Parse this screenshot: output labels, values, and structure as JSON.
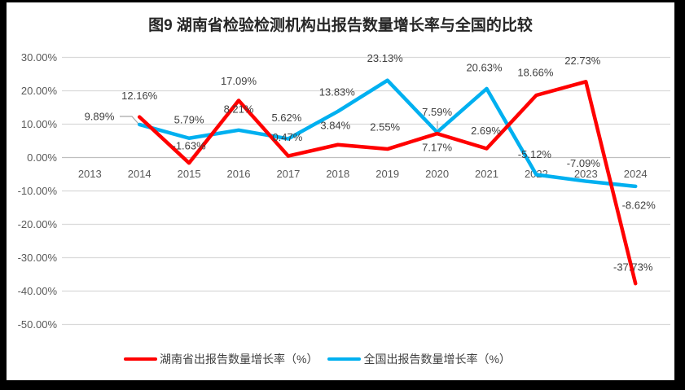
{
  "title": "图9 湖南省检验检测机构出报告数量增长率与全国的比较",
  "chart_data": {
    "type": "line",
    "categories": [
      "2013",
      "2014",
      "2015",
      "2016",
      "2017",
      "2018",
      "2019",
      "2020",
      "2021",
      "2022",
      "2023",
      "2024"
    ],
    "series": [
      {
        "name": "湖南省出报告数量增长率（%）",
        "color": "#FF0000",
        "values": [
          null,
          12.16,
          -1.63,
          17.09,
          0.47,
          3.84,
          2.55,
          7.17,
          2.69,
          18.66,
          22.73,
          -37.73
        ]
      },
      {
        "name": "全国出报告数量增长率（%）",
        "color": "#00B0F0",
        "values": [
          null,
          9.89,
          5.79,
          8.21,
          5.62,
          13.83,
          23.13,
          7.59,
          20.63,
          -5.12,
          -7.09,
          -8.62
        ]
      }
    ],
    "y_ticks": [
      "30.00%",
      "20.00%",
      "10.00%",
      "0.00%",
      "-10.00%",
      "-20.00%",
      "-30.00%",
      "-40.00%",
      "-50.00%"
    ],
    "ylim": [
      -50,
      30
    ],
    "grid": true,
    "legend_position": "bottom",
    "data_labels": "visible, value with two decimals and % sign",
    "grid_color": "#D9D9D9",
    "zero_line_color": "#BFBFBF",
    "axis_text_color": "#595959",
    "label_color": "#3F3F3F",
    "leader_color": "#A6A6A6"
  },
  "legend": {
    "items": [
      {
        "label": "湖南省出报告数量增长率（%）",
        "color": "#FF0000"
      },
      {
        "label": "全国出报告数量增长率（%）",
        "color": "#00B0F0"
      }
    ]
  }
}
